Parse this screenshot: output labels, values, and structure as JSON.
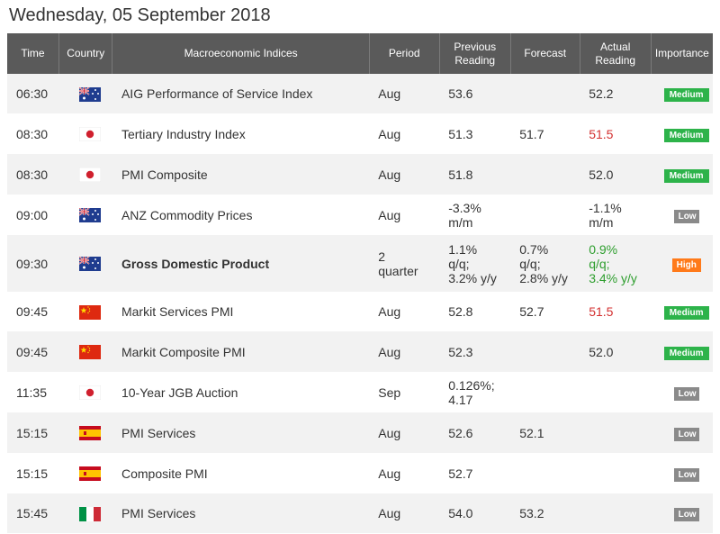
{
  "date": "Wednesday, 05 September 2018",
  "headers": {
    "time": "Time",
    "country": "Country",
    "indices": "Macroeconomic Indices",
    "period": "Period",
    "prev_1": "Previous",
    "prev_2": "Reading",
    "forecast": "Forecast",
    "actual_1": "Actual",
    "actual_2": "Reading",
    "importance": "Importance"
  },
  "colors": {
    "header_bg": "#5a5a5a",
    "row_alt": "#f2f2f2",
    "medium": "#2db34a",
    "low": "#8a8a8a",
    "high": "#ff7a1a",
    "below_forecast": "#d32f2f",
    "above_forecast": "#2e9e2e"
  },
  "rows": [
    {
      "time": "06:30",
      "country": "AU",
      "name": "AIG Performance of Service Index",
      "period": "Aug",
      "prev": "53.6",
      "forecast": "",
      "actual": "52.2",
      "actual_color": "",
      "importance": "Medium"
    },
    {
      "time": "08:30",
      "country": "JP",
      "name": "Tertiary Industry Index",
      "period": "Aug",
      "prev": "51.3",
      "forecast": "51.7",
      "actual": "51.5",
      "actual_color": "red",
      "importance": "Medium"
    },
    {
      "time": "08:30",
      "country": "JP",
      "name": "PMI Composite",
      "period": "Aug",
      "prev": "51.8",
      "forecast": "",
      "actual": "52.0",
      "actual_color": "",
      "importance": "Medium"
    },
    {
      "time": "09:00",
      "country": "AU",
      "name": "ANZ Commodity Prices",
      "period": "Aug",
      "prev": "-3.3%\nm/m",
      "forecast": "",
      "actual": "-1.1%\nm/m",
      "actual_color": "",
      "importance": "Low"
    },
    {
      "time": "09:30",
      "country": "AU",
      "name": "Gross Domestic Product",
      "bold": true,
      "period": "2\nquarter",
      "prev": "1.1%\nq/q;\n3.2% y/y",
      "forecast": "0.7%\nq/q;\n2.8% y/y",
      "actual": "0.9%\nq/q;\n3.4% y/y",
      "actual_color": "green",
      "importance": "High"
    },
    {
      "time": "09:45",
      "country": "CN",
      "name": "Markit Services PMI",
      "period": "Aug",
      "prev": "52.8",
      "forecast": "52.7",
      "actual": "51.5",
      "actual_color": "red",
      "importance": "Medium"
    },
    {
      "time": "09:45",
      "country": "CN",
      "name": "Markit Composite PMI",
      "period": "Aug",
      "prev": "52.3",
      "forecast": "",
      "actual": "52.0",
      "actual_color": "",
      "importance": "Medium"
    },
    {
      "time": "11:35",
      "country": "JP",
      "name": "10-Year JGB Auction",
      "period": "Sep",
      "prev": "0.126%;\n4.17",
      "forecast": "",
      "actual": "",
      "actual_color": "",
      "importance": "Low"
    },
    {
      "time": "15:15",
      "country": "ES",
      "name": "PMI Services",
      "period": "Aug",
      "prev": "52.6",
      "forecast": "52.1",
      "actual": "",
      "actual_color": "",
      "importance": "Low"
    },
    {
      "time": "15:15",
      "country": "ES",
      "name": "Composite PMI",
      "period": "Aug",
      "prev": "52.7",
      "forecast": "",
      "actual": "",
      "actual_color": "",
      "importance": "Low"
    },
    {
      "time": "15:45",
      "country": "IT",
      "name": "PMI Services",
      "period": "Aug",
      "prev": "54.0",
      "forecast": "53.2",
      "actual": "",
      "actual_color": "",
      "importance": "Low"
    }
  ]
}
